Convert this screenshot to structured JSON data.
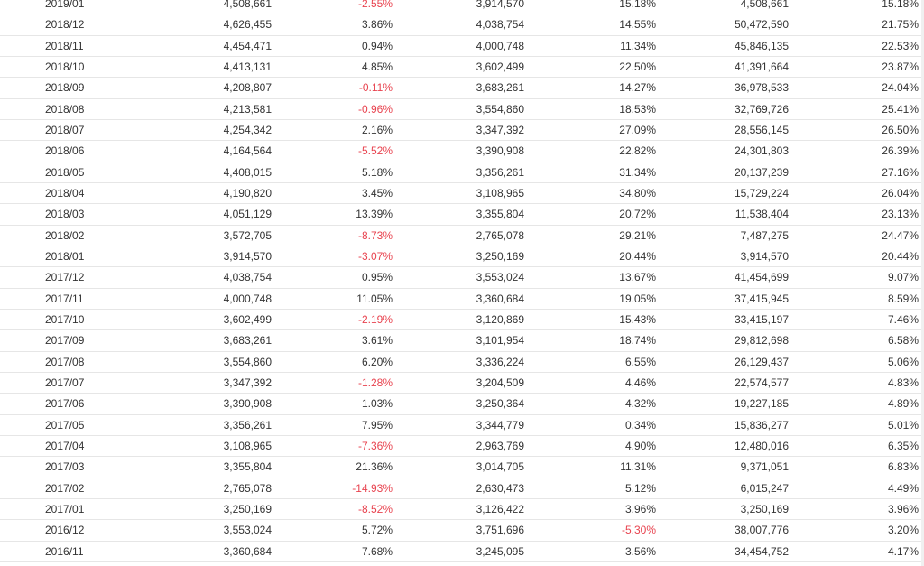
{
  "colors": {
    "text": "#333333",
    "negative": "#e8434f",
    "divider": "#e6e6e6"
  },
  "rows": [
    [
      "2019/01",
      "4,508,661",
      "-2.55%",
      "3,914,570",
      "15.18%",
      "4,508,661",
      "15.18%"
    ],
    [
      "2018/12",
      "4,626,455",
      "3.86%",
      "4,038,754",
      "14.55%",
      "50,472,590",
      "21.75%"
    ],
    [
      "2018/11",
      "4,454,471",
      "0.94%",
      "4,000,748",
      "11.34%",
      "45,846,135",
      "22.53%"
    ],
    [
      "2018/10",
      "4,413,131",
      "4.85%",
      "3,602,499",
      "22.50%",
      "41,391,664",
      "23.87%"
    ],
    [
      "2018/09",
      "4,208,807",
      "-0.11%",
      "3,683,261",
      "14.27%",
      "36,978,533",
      "24.04%"
    ],
    [
      "2018/08",
      "4,213,581",
      "-0.96%",
      "3,554,860",
      "18.53%",
      "32,769,726",
      "25.41%"
    ],
    [
      "2018/07",
      "4,254,342",
      "2.16%",
      "3,347,392",
      "27.09%",
      "28,556,145",
      "26.50%"
    ],
    [
      "2018/06",
      "4,164,564",
      "-5.52%",
      "3,390,908",
      "22.82%",
      "24,301,803",
      "26.39%"
    ],
    [
      "2018/05",
      "4,408,015",
      "5.18%",
      "3,356,261",
      "31.34%",
      "20,137,239",
      "27.16%"
    ],
    [
      "2018/04",
      "4,190,820",
      "3.45%",
      "3,108,965",
      "34.80%",
      "15,729,224",
      "26.04%"
    ],
    [
      "2018/03",
      "4,051,129",
      "13.39%",
      "3,355,804",
      "20.72%",
      "11,538,404",
      "23.13%"
    ],
    [
      "2018/02",
      "3,572,705",
      "-8.73%",
      "2,765,078",
      "29.21%",
      "7,487,275",
      "24.47%"
    ],
    [
      "2018/01",
      "3,914,570",
      "-3.07%",
      "3,250,169",
      "20.44%",
      "3,914,570",
      "20.44%"
    ],
    [
      "2017/12",
      "4,038,754",
      "0.95%",
      "3,553,024",
      "13.67%",
      "41,454,699",
      "9.07%"
    ],
    [
      "2017/11",
      "4,000,748",
      "11.05%",
      "3,360,684",
      "19.05%",
      "37,415,945",
      "8.59%"
    ],
    [
      "2017/10",
      "3,602,499",
      "-2.19%",
      "3,120,869",
      "15.43%",
      "33,415,197",
      "7.46%"
    ],
    [
      "2017/09",
      "3,683,261",
      "3.61%",
      "3,101,954",
      "18.74%",
      "29,812,698",
      "6.58%"
    ],
    [
      "2017/08",
      "3,554,860",
      "6.20%",
      "3,336,224",
      "6.55%",
      "26,129,437",
      "5.06%"
    ],
    [
      "2017/07",
      "3,347,392",
      "-1.28%",
      "3,204,509",
      "4.46%",
      "22,574,577",
      "4.83%"
    ],
    [
      "2017/06",
      "3,390,908",
      "1.03%",
      "3,250,364",
      "4.32%",
      "19,227,185",
      "4.89%"
    ],
    [
      "2017/05",
      "3,356,261",
      "7.95%",
      "3,344,779",
      "0.34%",
      "15,836,277",
      "5.01%"
    ],
    [
      "2017/04",
      "3,108,965",
      "-7.36%",
      "2,963,769",
      "4.90%",
      "12,480,016",
      "6.35%"
    ],
    [
      "2017/03",
      "3,355,804",
      "21.36%",
      "3,014,705",
      "11.31%",
      "9,371,051",
      "6.83%"
    ],
    [
      "2017/02",
      "2,765,078",
      "-14.93%",
      "2,630,473",
      "5.12%",
      "6,015,247",
      "4.49%"
    ],
    [
      "2017/01",
      "3,250,169",
      "-8.52%",
      "3,126,422",
      "3.96%",
      "3,250,169",
      "3.96%"
    ],
    [
      "2016/12",
      "3,553,024",
      "5.72%",
      "3,751,696",
      "-5.30%",
      "38,007,776",
      "3.20%"
    ],
    [
      "2016/11",
      "3,360,684",
      "7.68%",
      "3,245,095",
      "3.56%",
      "34,454,752",
      "4.17%"
    ]
  ]
}
